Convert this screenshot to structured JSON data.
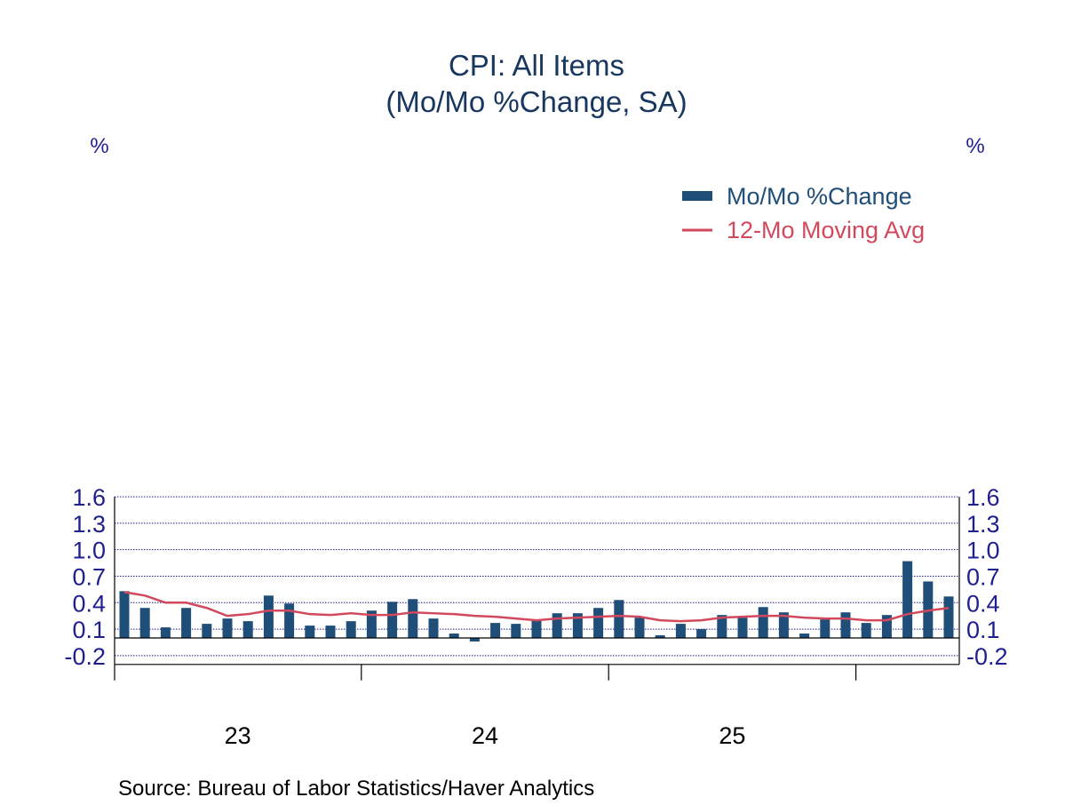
{
  "chart_data": {
    "type": "bar",
    "title": "CPI: All Items",
    "subtitle": "(Mo/Mo %Change, SA)",
    "y_unit_left": "%",
    "y_unit_right": "%",
    "ylim": [
      -0.3,
      1.6
    ],
    "yticks": [
      1.6,
      1.3,
      1.0,
      0.7,
      0.4,
      0.1,
      -0.2
    ],
    "ytick_labels": [
      "1.6",
      "1.3",
      "1.0",
      "0.7",
      "0.4",
      "0.1",
      "-0.2"
    ],
    "grid": true,
    "legend_position": "top-right",
    "x_year_labels": [
      "23",
      "24",
      "25"
    ],
    "categories": [
      "2023-01",
      "2023-02",
      "2023-03",
      "2023-04",
      "2023-05",
      "2023-06",
      "2023-07",
      "2023-08",
      "2023-09",
      "2023-10",
      "2023-11",
      "2023-12",
      "2024-01",
      "2024-02",
      "2024-03",
      "2024-04",
      "2024-05",
      "2024-06",
      "2024-07",
      "2024-08",
      "2024-09",
      "2024-10",
      "2024-11",
      "2024-12",
      "2025-01",
      "2025-02",
      "2025-03",
      "2025-04",
      "2025-05",
      "2025-06",
      "2025-07",
      "2025-08",
      "2025-09",
      "2025-10",
      "2025-11",
      "2025-12",
      "2026-01",
      "2026-02",
      "2026-03",
      "2026-04",
      "2026-05"
    ],
    "series": [
      {
        "name": "Mo/Mo %Change",
        "type": "bar",
        "color": "#1f4e79",
        "values": [
          0.53,
          0.34,
          0.12,
          0.34,
          0.16,
          0.22,
          0.19,
          0.48,
          0.39,
          0.14,
          0.14,
          0.19,
          0.31,
          0.41,
          0.44,
          0.22,
          0.05,
          -0.04,
          0.17,
          0.16,
          0.21,
          0.28,
          0.28,
          0.34,
          0.43,
          0.23,
          0.03,
          0.16,
          0.1,
          0.26,
          0.23,
          0.35,
          0.29,
          0.05,
          0.21,
          0.29,
          0.17,
          0.26,
          0.87,
          0.64,
          0.47
        ]
      },
      {
        "name": "12-Mo Moving Avg",
        "type": "line",
        "color": "#d2495e",
        "values": [
          0.52,
          0.48,
          0.4,
          0.4,
          0.34,
          0.25,
          0.27,
          0.31,
          0.31,
          0.27,
          0.26,
          0.28,
          0.26,
          0.26,
          0.29,
          0.28,
          0.27,
          0.25,
          0.24,
          0.22,
          0.2,
          0.22,
          0.23,
          0.24,
          0.25,
          0.24,
          0.2,
          0.19,
          0.2,
          0.23,
          0.24,
          0.25,
          0.25,
          0.23,
          0.22,
          0.22,
          0.2,
          0.2,
          0.27,
          0.31,
          0.34
        ]
      }
    ]
  },
  "source": "Source:  Bureau of Labor Statistics/Haver Analytics"
}
